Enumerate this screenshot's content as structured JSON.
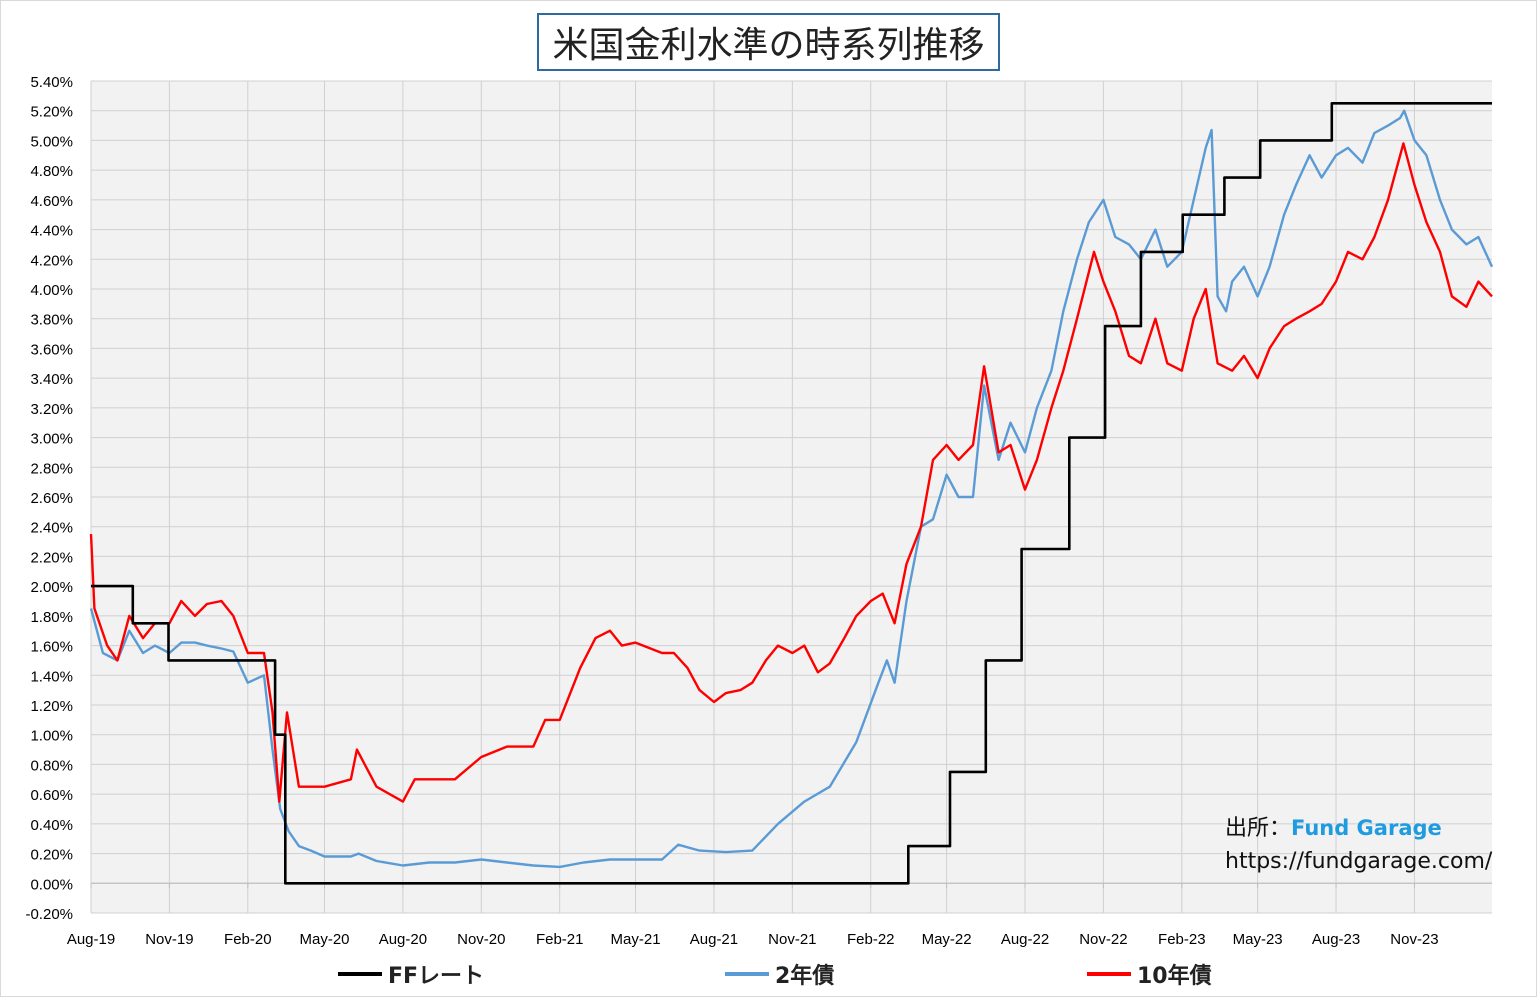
{
  "chart_data": {
    "type": "line",
    "title": "米国金利水準の時系列推移",
    "ylim": [
      -0.2,
      5.4
    ],
    "yticks": [
      "5.40%",
      "5.20%",
      "5.00%",
      "4.80%",
      "4.60%",
      "4.40%",
      "4.20%",
      "4.00%",
      "3.80%",
      "3.60%",
      "3.40%",
      "3.20%",
      "3.00%",
      "2.80%",
      "2.60%",
      "2.40%",
      "2.20%",
      "2.00%",
      "1.80%",
      "1.60%",
      "1.40%",
      "1.20%",
      "1.00%",
      "0.80%",
      "0.60%",
      "0.40%",
      "0.20%",
      "0.00%",
      "-0.20%"
    ],
    "xticks": [
      "Aug-19",
      "Nov-19",
      "Feb-20",
      "May-20",
      "Aug-20",
      "Nov-20",
      "Feb-21",
      "May-21",
      "Aug-21",
      "Nov-21",
      "Feb-22",
      "May-22",
      "Aug-22",
      "Nov-22",
      "Feb-23",
      "May-23",
      "Aug-23",
      "Nov-23"
    ],
    "x_range": [
      "2019-08-01",
      "2024-01-31"
    ],
    "grid": true,
    "legend_position": "bottom",
    "series": [
      {
        "name": "FFレート",
        "color": "#000000",
        "step": true,
        "points": [
          [
            "2019-08-01",
            2.0
          ],
          [
            "2019-09-19",
            1.75
          ],
          [
            "2019-10-31",
            1.5
          ],
          [
            "2020-03-04",
            1.0
          ],
          [
            "2020-03-16",
            0.0
          ],
          [
            "2022-03-17",
            0.25
          ],
          [
            "2022-05-05",
            0.75
          ],
          [
            "2022-06-16",
            1.5
          ],
          [
            "2022-07-28",
            2.25
          ],
          [
            "2022-09-22",
            3.0
          ],
          [
            "2022-11-03",
            3.75
          ],
          [
            "2022-12-15",
            4.25
          ],
          [
            "2023-02-02",
            4.5
          ],
          [
            "2023-03-23",
            4.75
          ],
          [
            "2023-05-04",
            5.0
          ],
          [
            "2023-07-27",
            5.25
          ],
          [
            "2024-01-31",
            5.25
          ]
        ]
      },
      {
        "name": "2年債",
        "color": "#5b9bd5",
        "points": [
          [
            "2019-08-01",
            1.85
          ],
          [
            "2019-08-15",
            1.55
          ],
          [
            "2019-09-01",
            1.5
          ],
          [
            "2019-09-15",
            1.7
          ],
          [
            "2019-10-01",
            1.55
          ],
          [
            "2019-10-15",
            1.6
          ],
          [
            "2019-11-01",
            1.55
          ],
          [
            "2019-11-15",
            1.62
          ],
          [
            "2019-12-01",
            1.62
          ],
          [
            "2019-12-15",
            1.6
          ],
          [
            "2020-01-01",
            1.58
          ],
          [
            "2020-01-15",
            1.56
          ],
          [
            "2020-02-01",
            1.35
          ],
          [
            "2020-02-20",
            1.4
          ],
          [
            "2020-03-01",
            0.9
          ],
          [
            "2020-03-10",
            0.5
          ],
          [
            "2020-03-20",
            0.35
          ],
          [
            "2020-04-01",
            0.25
          ],
          [
            "2020-04-15",
            0.22
          ],
          [
            "2020-05-01",
            0.18
          ],
          [
            "2020-06-01",
            0.18
          ],
          [
            "2020-06-10",
            0.2
          ],
          [
            "2020-07-01",
            0.15
          ],
          [
            "2020-08-01",
            0.12
          ],
          [
            "2020-09-01",
            0.14
          ],
          [
            "2020-10-01",
            0.14
          ],
          [
            "2020-11-01",
            0.16
          ],
          [
            "2020-12-01",
            0.14
          ],
          [
            "2021-01-01",
            0.12
          ],
          [
            "2021-02-01",
            0.11
          ],
          [
            "2021-03-01",
            0.14
          ],
          [
            "2021-04-01",
            0.16
          ],
          [
            "2021-05-01",
            0.16
          ],
          [
            "2021-06-01",
            0.16
          ],
          [
            "2021-06-20",
            0.26
          ],
          [
            "2021-07-15",
            0.22
          ],
          [
            "2021-08-15",
            0.21
          ],
          [
            "2021-09-15",
            0.22
          ],
          [
            "2021-10-15",
            0.4
          ],
          [
            "2021-11-15",
            0.55
          ],
          [
            "2021-12-15",
            0.65
          ],
          [
            "2022-01-15",
            0.95
          ],
          [
            "2022-02-10",
            1.35
          ],
          [
            "2022-02-20",
            1.5
          ],
          [
            "2022-03-01",
            1.35
          ],
          [
            "2022-03-15",
            1.9
          ],
          [
            "2022-04-01",
            2.4
          ],
          [
            "2022-04-15",
            2.45
          ],
          [
            "2022-05-01",
            2.75
          ],
          [
            "2022-05-15",
            2.6
          ],
          [
            "2022-06-01",
            2.6
          ],
          [
            "2022-06-14",
            3.35
          ],
          [
            "2022-07-01",
            2.85
          ],
          [
            "2022-07-15",
            3.1
          ],
          [
            "2022-08-01",
            2.9
          ],
          [
            "2022-08-15",
            3.2
          ],
          [
            "2022-09-01",
            3.45
          ],
          [
            "2022-09-15",
            3.85
          ],
          [
            "2022-10-01",
            4.2
          ],
          [
            "2022-10-15",
            4.45
          ],
          [
            "2022-11-01",
            4.6
          ],
          [
            "2022-11-15",
            4.35
          ],
          [
            "2022-12-01",
            4.3
          ],
          [
            "2022-12-15",
            4.2
          ],
          [
            "2023-01-01",
            4.4
          ],
          [
            "2023-01-15",
            4.15
          ],
          [
            "2023-02-01",
            4.25
          ],
          [
            "2023-02-15",
            4.6
          ],
          [
            "2023-03-01",
            4.95
          ],
          [
            "2023-03-08",
            5.07
          ],
          [
            "2023-03-15",
            3.95
          ],
          [
            "2023-03-25",
            3.85
          ],
          [
            "2023-04-01",
            4.05
          ],
          [
            "2023-04-15",
            4.15
          ],
          [
            "2023-05-01",
            3.95
          ],
          [
            "2023-05-15",
            4.15
          ],
          [
            "2023-06-01",
            4.5
          ],
          [
            "2023-06-15",
            4.7
          ],
          [
            "2023-07-01",
            4.9
          ],
          [
            "2023-07-15",
            4.75
          ],
          [
            "2023-08-01",
            4.9
          ],
          [
            "2023-08-15",
            4.95
          ],
          [
            "2023-09-01",
            4.85
          ],
          [
            "2023-09-15",
            5.05
          ],
          [
            "2023-10-01",
            5.1
          ],
          [
            "2023-10-15",
            5.15
          ],
          [
            "2023-10-20",
            5.2
          ],
          [
            "2023-11-01",
            5.0
          ],
          [
            "2023-11-15",
            4.9
          ],
          [
            "2023-12-01",
            4.6
          ],
          [
            "2023-12-15",
            4.4
          ],
          [
            "2024-01-01",
            4.3
          ],
          [
            "2024-01-15",
            4.35
          ],
          [
            "2024-01-31",
            4.15
          ]
        ]
      },
      {
        "name": "10年債",
        "color": "#ff0000",
        "points": [
          [
            "2019-08-01",
            2.35
          ],
          [
            "2019-08-05",
            1.85
          ],
          [
            "2019-08-20",
            1.6
          ],
          [
            "2019-09-01",
            1.5
          ],
          [
            "2019-09-15",
            1.8
          ],
          [
            "2019-10-01",
            1.65
          ],
          [
            "2019-10-15",
            1.75
          ],
          [
            "2019-11-01",
            1.75
          ],
          [
            "2019-11-15",
            1.9
          ],
          [
            "2019-12-01",
            1.8
          ],
          [
            "2019-12-15",
            1.88
          ],
          [
            "2020-01-01",
            1.9
          ],
          [
            "2020-01-15",
            1.8
          ],
          [
            "2020-02-01",
            1.55
          ],
          [
            "2020-02-20",
            1.55
          ],
          [
            "2020-03-01",
            1.15
          ],
          [
            "2020-03-09",
            0.55
          ],
          [
            "2020-03-18",
            1.15
          ],
          [
            "2020-04-01",
            0.65
          ],
          [
            "2020-04-15",
            0.65
          ],
          [
            "2020-05-01",
            0.65
          ],
          [
            "2020-06-01",
            0.7
          ],
          [
            "2020-06-08",
            0.9
          ],
          [
            "2020-07-01",
            0.65
          ],
          [
            "2020-08-01",
            0.55
          ],
          [
            "2020-08-15",
            0.7
          ],
          [
            "2020-09-01",
            0.7
          ],
          [
            "2020-10-01",
            0.7
          ],
          [
            "2020-11-01",
            0.85
          ],
          [
            "2020-12-01",
            0.92
          ],
          [
            "2021-01-01",
            0.92
          ],
          [
            "2021-01-15",
            1.1
          ],
          [
            "2021-02-01",
            1.1
          ],
          [
            "2021-02-25",
            1.45
          ],
          [
            "2021-03-15",
            1.65
          ],
          [
            "2021-04-01",
            1.7
          ],
          [
            "2021-04-15",
            1.6
          ],
          [
            "2021-05-01",
            1.62
          ],
          [
            "2021-06-01",
            1.55
          ],
          [
            "2021-06-15",
            1.55
          ],
          [
            "2021-07-01",
            1.45
          ],
          [
            "2021-07-15",
            1.3
          ],
          [
            "2021-08-01",
            1.22
          ],
          [
            "2021-08-15",
            1.28
          ],
          [
            "2021-09-01",
            1.3
          ],
          [
            "2021-09-15",
            1.35
          ],
          [
            "2021-10-01",
            1.5
          ],
          [
            "2021-10-15",
            1.6
          ],
          [
            "2021-11-01",
            1.55
          ],
          [
            "2021-11-15",
            1.6
          ],
          [
            "2021-12-01",
            1.42
          ],
          [
            "2021-12-15",
            1.48
          ],
          [
            "2022-01-01",
            1.65
          ],
          [
            "2022-01-15",
            1.8
          ],
          [
            "2022-02-01",
            1.9
          ],
          [
            "2022-02-15",
            1.95
          ],
          [
            "2022-03-01",
            1.75
          ],
          [
            "2022-03-15",
            2.15
          ],
          [
            "2022-04-01",
            2.4
          ],
          [
            "2022-04-15",
            2.85
          ],
          [
            "2022-05-01",
            2.95
          ],
          [
            "2022-05-15",
            2.85
          ],
          [
            "2022-06-01",
            2.95
          ],
          [
            "2022-06-14",
            3.48
          ],
          [
            "2022-07-01",
            2.9
          ],
          [
            "2022-07-15",
            2.95
          ],
          [
            "2022-08-01",
            2.65
          ],
          [
            "2022-08-15",
            2.85
          ],
          [
            "2022-09-01",
            3.2
          ],
          [
            "2022-09-15",
            3.45
          ],
          [
            "2022-10-01",
            3.8
          ],
          [
            "2022-10-21",
            4.25
          ],
          [
            "2022-11-01",
            4.05
          ],
          [
            "2022-11-15",
            3.85
          ],
          [
            "2022-12-01",
            3.55
          ],
          [
            "2022-12-15",
            3.5
          ],
          [
            "2023-01-01",
            3.8
          ],
          [
            "2023-01-15",
            3.5
          ],
          [
            "2023-02-01",
            3.45
          ],
          [
            "2023-02-15",
            3.8
          ],
          [
            "2023-03-01",
            4.0
          ],
          [
            "2023-03-15",
            3.5
          ],
          [
            "2023-04-01",
            3.45
          ],
          [
            "2023-04-15",
            3.55
          ],
          [
            "2023-05-01",
            3.4
          ],
          [
            "2023-05-15",
            3.6
          ],
          [
            "2023-06-01",
            3.75
          ],
          [
            "2023-06-15",
            3.8
          ],
          [
            "2023-07-01",
            3.85
          ],
          [
            "2023-07-15",
            3.9
          ],
          [
            "2023-08-01",
            4.05
          ],
          [
            "2023-08-15",
            4.25
          ],
          [
            "2023-09-01",
            4.2
          ],
          [
            "2023-09-15",
            4.35
          ],
          [
            "2023-10-01",
            4.6
          ],
          [
            "2023-10-19",
            4.98
          ],
          [
            "2023-11-01",
            4.7
          ],
          [
            "2023-11-15",
            4.45
          ],
          [
            "2023-12-01",
            4.25
          ],
          [
            "2023-12-15",
            3.95
          ],
          [
            "2024-01-01",
            3.88
          ],
          [
            "2024-01-15",
            4.05
          ],
          [
            "2024-01-31",
            3.95
          ]
        ]
      }
    ]
  },
  "source": {
    "label": "出所：",
    "brand": "Fund Garage",
    "url": "https://fundgarage.com/"
  }
}
